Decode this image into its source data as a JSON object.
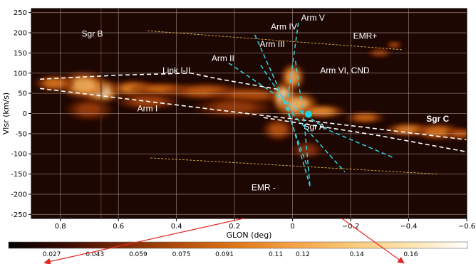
{
  "chart_data": {
    "type": "heatmap",
    "xlabel": "GLON (deg)",
    "ylabel": "Vlsr (km/s)",
    "xlim": [
      0.9,
      -0.6
    ],
    "ylim": [
      -260,
      260
    ],
    "x_ticks": [
      0.8,
      0.6,
      0.4,
      0.2,
      0,
      -0.2,
      -0.4,
      -0.6
    ],
    "x_tick_labels": [
      "0.8",
      "0.6",
      "0.4",
      "0.2",
      "0",
      "−0.2",
      "−0.4",
      "−0.6"
    ],
    "y_ticks": [
      250,
      200,
      150,
      100,
      50,
      0,
      -50,
      -100,
      -150,
      -200,
      -250
    ],
    "grid": true,
    "colorbar": {
      "orientation": "horizontal",
      "position": "bottom",
      "tick_values": [
        0.027,
        0.043,
        0.059,
        0.075,
        0.091,
        0.11,
        0.12,
        0.14,
        0.16
      ],
      "tick_labels": [
        "0.027",
        "0.043",
        "0.059",
        "0.075",
        "0.091",
        "0.11",
        "0.12",
        "0.14",
        "0.16"
      ],
      "colors": [
        "#000000",
        "#3a0b02",
        "#7a2a06",
        "#b34d0c",
        "#e0781a",
        "#f5a447",
        "#fbc97a",
        "#fde4b0",
        "#ffffff"
      ]
    },
    "emission_blobs": [
      {
        "l": 0.66,
        "v": 55,
        "sl": 0.05,
        "sv": 22,
        "a": 1.0
      },
      {
        "l": 0.72,
        "v": 70,
        "sl": 0.06,
        "sv": 25,
        "a": 0.75
      },
      {
        "l": 0.55,
        "v": 62,
        "sl": 0.06,
        "sv": 15,
        "a": 0.55
      },
      {
        "l": 0.82,
        "v": 75,
        "sl": 0.05,
        "sv": 15,
        "a": 0.5
      },
      {
        "l": 0.45,
        "v": 60,
        "sl": 0.08,
        "sv": 12,
        "a": 0.45
      },
      {
        "l": 0.3,
        "v": 55,
        "sl": 0.1,
        "sv": 15,
        "a": 0.4
      },
      {
        "l": 0.15,
        "v": 45,
        "sl": 0.1,
        "sv": 15,
        "a": 0.35
      },
      {
        "l": 0.03,
        "v": 40,
        "sl": 0.03,
        "sv": 30,
        "a": 1.0
      },
      {
        "l": -0.02,
        "v": 20,
        "sl": 0.05,
        "sv": 25,
        "a": 0.8
      },
      {
        "l": 0.0,
        "v": 90,
        "sl": 0.03,
        "sv": 25,
        "a": 0.7
      },
      {
        "l": -0.1,
        "v": 5,
        "sl": 0.06,
        "sv": 12,
        "a": 0.6
      },
      {
        "l": -0.25,
        "v": -10,
        "sl": 0.05,
        "sv": 10,
        "a": 0.45
      },
      {
        "l": -0.4,
        "v": -40,
        "sl": 0.06,
        "sv": 12,
        "a": 0.55
      },
      {
        "l": -0.5,
        "v": -45,
        "sl": 0.06,
        "sv": 15,
        "a": 0.5
      },
      {
        "l": -0.58,
        "v": -50,
        "sl": 0.04,
        "sv": 10,
        "a": 0.4
      },
      {
        "l": 0.5,
        "v": 30,
        "sl": 0.08,
        "sv": 15,
        "a": 0.3
      },
      {
        "l": 0.2,
        "v": 15,
        "sl": 0.1,
        "sv": 18,
        "a": 0.25
      },
      {
        "l": 0.05,
        "v": -40,
        "sl": 0.04,
        "sv": 20,
        "a": 0.35
      },
      {
        "l": -0.3,
        "v": 150,
        "sl": 0.03,
        "sv": 8,
        "a": 0.25
      },
      {
        "l": -0.35,
        "v": 170,
        "sl": 0.02,
        "sv": 6,
        "a": 0.35
      },
      {
        "l": 0.7,
        "v": 10,
        "sl": 0.06,
        "sv": 20,
        "a": 0.25
      },
      {
        "l": -0.05,
        "v": -90,
        "sl": 0.04,
        "sv": 15,
        "a": 0.2
      }
    ],
    "overlays": [
      {
        "name": "Link I-II",
        "style": "white-dashed",
        "points": [
          [
            0.87,
            85
          ],
          [
            0.6,
            95
          ],
          [
            0.35,
            100
          ],
          [
            0.25,
            85
          ],
          [
            0.05,
            60
          ]
        ]
      },
      {
        "name": "Arm I",
        "style": "white-dashed",
        "points": [
          [
            0.87,
            62
          ],
          [
            0.5,
            30
          ],
          [
            0.1,
            -5
          ],
          [
            -0.2,
            -30
          ],
          [
            -0.6,
            -65
          ]
        ]
      },
      {
        "name": "Sgr A-",
        "style": "white-dashed",
        "points": [
          [
            0.1,
            -10
          ],
          [
            -0.3,
            -55
          ],
          [
            -0.6,
            -95
          ]
        ]
      },
      {
        "name": "Arm II",
        "style": "cyan-dashed",
        "points": [
          [
            0.22,
            125
          ],
          [
            -0.12,
            -40
          ],
          [
            -0.35,
            -110
          ]
        ]
      },
      {
        "name": "Arm III",
        "style": "cyan-dashed",
        "points": [
          [
            0.13,
            195
          ],
          [
            0.04,
            50
          ],
          [
            -0.05,
            -130
          ]
        ]
      },
      {
        "name": "Arm IV",
        "style": "cyan-dashed",
        "points": [
          [
            0.11,
            120
          ],
          [
            0.0,
            0
          ],
          [
            -0.18,
            -145
          ]
        ]
      },
      {
        "name": "Arm V",
        "style": "cyan-dashed",
        "points": [
          [
            -0.02,
            225
          ],
          [
            0.02,
            20
          ],
          [
            -0.06,
            -180
          ]
        ]
      },
      {
        "name": "Arm VI",
        "style": "cyan-dashed",
        "points": [
          [
            -0.01,
            130
          ],
          [
            -0.04,
            -20
          ],
          [
            -0.06,
            -180
          ]
        ]
      },
      {
        "name": "EMR+",
        "style": "yellow-dashed",
        "points": [
          [
            0.5,
            205
          ],
          [
            -0.38,
            158
          ]
        ]
      },
      {
        "name": "EMR -",
        "style": "yellow-dashed",
        "points": [
          [
            0.49,
            -110
          ],
          [
            -0.5,
            -150
          ]
        ]
      }
    ],
    "markers": [
      {
        "name": "Sgr A* marker",
        "l": -0.055,
        "v": -2
      }
    ],
    "annotations": [
      {
        "text": "Sgr B",
        "l": 0.69,
        "v": 190,
        "bold": false
      },
      {
        "text": "Link I-II",
        "l": 0.4,
        "v": 100,
        "bold": false
      },
      {
        "text": "Arm II",
        "l": 0.24,
        "v": 130,
        "bold": false
      },
      {
        "text": "Arm III",
        "l": 0.07,
        "v": 165,
        "bold": false
      },
      {
        "text": "Arm IV",
        "l": 0.03,
        "v": 208,
        "bold": false
      },
      {
        "text": "Arm V",
        "l": -0.07,
        "v": 230,
        "bold": false
      },
      {
        "text": "EMR+",
        "l": -0.25,
        "v": 185,
        "bold": false
      },
      {
        "text": "Arm VI, CND",
        "l": -0.18,
        "v": 100,
        "bold": false
      },
      {
        "text": "Arm I",
        "l": 0.5,
        "v": 5,
        "bold": false
      },
      {
        "text": "Sgr A-",
        "l": -0.08,
        "v": -40,
        "bold": false
      },
      {
        "text": "Sgr C",
        "l": -0.5,
        "v": -20,
        "bold": true
      },
      {
        "text": "EMR -",
        "l": 0.1,
        "v": -190,
        "bold": false
      }
    ],
    "zoom_arrows": [
      {
        "from_l": 0.17,
        "to_frac": 0.08
      },
      {
        "from_l": -0.17,
        "to_frac": 0.86
      }
    ]
  }
}
